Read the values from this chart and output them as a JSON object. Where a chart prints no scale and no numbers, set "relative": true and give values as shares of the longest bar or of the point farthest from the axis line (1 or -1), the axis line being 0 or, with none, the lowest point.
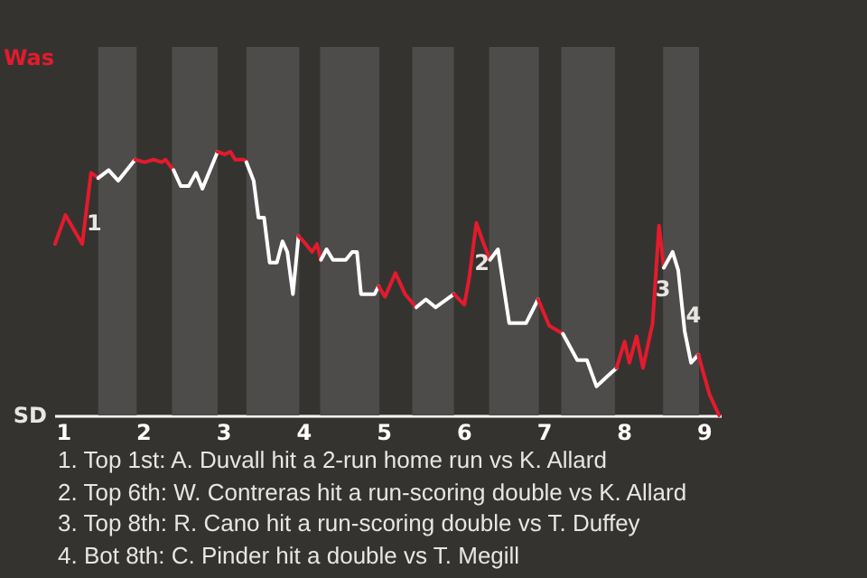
{
  "chart_data": {
    "type": "line",
    "relative": true,
    "xlim": [
      0.89,
      9.21
    ],
    "xticks": [
      1,
      2,
      3,
      4,
      5,
      6,
      7,
      8,
      9
    ],
    "series": [
      {
        "color": "#e31b2d",
        "x": [
          0.9,
          1.03,
          1.24,
          1.35,
          1.44
        ],
        "values": [
          0.65,
          0.76,
          0.65,
          0.92,
          0.9
        ]
      },
      {
        "color": "#ffffff",
        "x": [
          1.44,
          1.57,
          1.69,
          1.9
        ],
        "values": [
          0.9,
          0.93,
          0.89,
          0.97
        ]
      },
      {
        "color": "#e31b2d",
        "x": [
          1.9,
          2.02,
          2.13,
          2.23,
          2.28,
          2.38
        ],
        "values": [
          0.97,
          0.96,
          0.97,
          0.96,
          0.97,
          0.93
        ]
      },
      {
        "color": "#ffffff",
        "x": [
          2.38,
          2.47,
          2.57,
          2.66,
          2.74,
          2.93
        ],
        "values": [
          0.93,
          0.87,
          0.87,
          0.92,
          0.86,
          1
        ]
      },
      {
        "color": "#e31b2d",
        "x": [
          2.93,
          3.02,
          3.09,
          3.15,
          3.26,
          3.29
        ],
        "values": [
          1,
          0.99,
          1,
          0.97,
          0.97,
          0.96
        ]
      },
      {
        "color": "#ffffff",
        "x": [
          3.29,
          3.38,
          3.44,
          3.51,
          3.58,
          3.67,
          3.74,
          3.8,
          3.87,
          3.94
        ],
        "values": [
          0.96,
          0.89,
          0.75,
          0.75,
          0.58,
          0.58,
          0.66,
          0.62,
          0.46,
          0.68
        ]
      },
      {
        "color": "#e31b2d",
        "x": [
          3.94,
          4.03,
          4.11,
          4.17,
          4.22
        ],
        "values": [
          0.68,
          0.65,
          0.62,
          0.65,
          0.59
        ]
      },
      {
        "color": "#ffffff",
        "x": [
          4.22,
          4.29,
          4.37,
          4.53,
          4.61,
          4.67,
          4.72,
          4.89,
          4.94
        ],
        "values": [
          0.59,
          0.63,
          0.59,
          0.59,
          0.62,
          0.62,
          0.46,
          0.46,
          0.49
        ]
      },
      {
        "color": "#e31b2d",
        "x": [
          4.94,
          5.02,
          5.15,
          5.27,
          5.41
        ],
        "values": [
          0.49,
          0.45,
          0.54,
          0.46,
          0.41
        ]
      },
      {
        "color": "#ffffff",
        "x": [
          5.41,
          5.53,
          5.65,
          5.88
        ],
        "values": [
          0.41,
          0.44,
          0.41,
          0.46
        ]
      },
      {
        "color": "#e31b2d",
        "x": [
          5.88,
          6.01,
          6.07,
          6.16,
          6.24,
          6.33
        ],
        "values": [
          0.46,
          0.42,
          0.52,
          0.73,
          0.66,
          0.59
        ]
      },
      {
        "color": "#ffffff",
        "x": [
          6.33,
          6.43,
          6.57,
          6.78,
          6.93
        ],
        "values": [
          0.59,
          0.63,
          0.35,
          0.35,
          0.44
        ]
      },
      {
        "color": "#e31b2d",
        "x": [
          6.93,
          7.07,
          7.24
        ],
        "values": [
          0.44,
          0.34,
          0.31
        ]
      },
      {
        "color": "#ffffff",
        "x": [
          7.24,
          7.42,
          7.54,
          7.66,
          7.8,
          7.91
        ],
        "values": [
          0.31,
          0.21,
          0.21,
          0.11,
          0.15,
          0.18
        ]
      },
      {
        "color": "#e31b2d",
        "x": [
          7.91,
          8.01,
          8.07,
          8.16,
          8.24,
          8.36,
          8.44,
          8.5
        ],
        "values": [
          0.18,
          0.28,
          0.2,
          0.3,
          0.18,
          0.35,
          0.72,
          0.56
        ]
      },
      {
        "color": "#ffffff",
        "x": [
          8.5,
          8.61,
          8.68,
          8.76,
          8.84,
          8.93
        ],
        "values": [
          0.56,
          0.62,
          0.55,
          0.32,
          0.2,
          0.23
        ]
      },
      {
        "color": "#e31b2d",
        "x": [
          8.93,
          9.07,
          9.19
        ],
        "values": [
          0.23,
          0.08,
          0
        ]
      }
    ],
    "bands": [
      {
        "axis": "x",
        "from": 1.44,
        "to": 1.92,
        "color": "#4d4c4a"
      },
      {
        "axis": "x",
        "from": 2.36,
        "to": 2.93,
        "color": "#4d4c4a"
      },
      {
        "axis": "x",
        "from": 3.29,
        "to": 3.95,
        "color": "#4d4c4a"
      },
      {
        "axis": "x",
        "from": 4.21,
        "to": 4.95,
        "color": "#4d4c4a"
      },
      {
        "axis": "x",
        "from": 5.36,
        "to": 5.88,
        "color": "#4d4c4a"
      },
      {
        "axis": "x",
        "from": 6.32,
        "to": 6.94,
        "color": "#4d4c4a"
      },
      {
        "axis": "x",
        "from": 7.22,
        "to": 7.89,
        "color": "#4d4c4a"
      },
      {
        "axis": "x",
        "from": 8.49,
        "to": 8.94,
        "color": "#4d4c4a"
      }
    ],
    "annotations": [
      "Was",
      "SD",
      {
        "text": "1",
        "x": 1.39,
        "y": 0.73
      },
      {
        "text": "2",
        "x": 6.23,
        "y": 0.58
      },
      {
        "text": "3",
        "x": 8.49,
        "y": 0.48
      },
      {
        "text": "4",
        "x": 8.87,
        "y": 0.38
      },
      "1. Top 1st: A. Duvall hit a 2-run home run vs K. Allard",
      "2. Top 6th: W. Contreras hit a run-scoring double vs K. Allard",
      "3. Top 8th: R. Cano hit a run-scoring double vs T. Duffey",
      "4. Bot 8th: C. Pinder hit a double vs T. Megill"
    ]
  }
}
